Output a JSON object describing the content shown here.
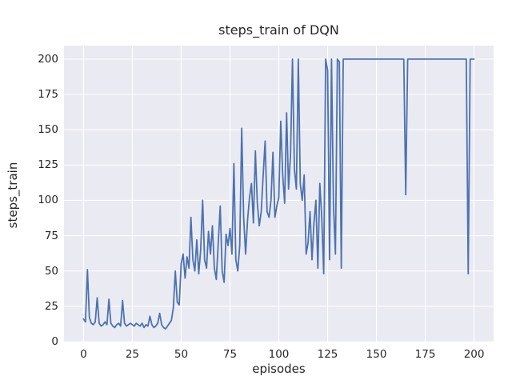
{
  "chart_data": {
    "type": "line",
    "title": "steps_train of DQN",
    "xlabel": "episodes",
    "ylabel": "steps_train",
    "xlim": [
      -10,
      210
    ],
    "ylim": [
      -0.55,
      209.55
    ],
    "xticks": [
      0,
      25,
      50,
      75,
      100,
      125,
      150,
      175,
      200
    ],
    "yticks": [
      0,
      25,
      50,
      75,
      100,
      125,
      150,
      175,
      200
    ],
    "grid": true,
    "legend_position": "none",
    "line_color": "#4c72b0",
    "plot_bg": "#eaeaf2",
    "grid_color": "#ffffff",
    "text_color": "#262626",
    "x_start": 0,
    "x_step": 1,
    "values": [
      16,
      14,
      51,
      17,
      13,
      12,
      14,
      31,
      13,
      11,
      12,
      14,
      12,
      30,
      13,
      11,
      10,
      12,
      13,
      11,
      29,
      13,
      11,
      12,
      13,
      12,
      11,
      13,
      12,
      11,
      13,
      10,
      12,
      11,
      18,
      12,
      10,
      11,
      13,
      20,
      12,
      10,
      9,
      11,
      13,
      15,
      24,
      50,
      28,
      26,
      55,
      62,
      45,
      60,
      52,
      88,
      58,
      50,
      72,
      48,
      65,
      100,
      58,
      52,
      78,
      62,
      82,
      52,
      44,
      70,
      96,
      50,
      42,
      76,
      68,
      80,
      62,
      126,
      58,
      50,
      68,
      151,
      88,
      62,
      86,
      102,
      112,
      84,
      135,
      98,
      82,
      92,
      118,
      142,
      92,
      88,
      100,
      134,
      88,
      96,
      102,
      156,
      118,
      98,
      162,
      108,
      132,
      200,
      122,
      108,
      200,
      112,
      100,
      118,
      62,
      70,
      92,
      58,
      84,
      100,
      52,
      112,
      88,
      48,
      200,
      192,
      58,
      200,
      96,
      62,
      200,
      198,
      52,
      200,
      200,
      200,
      200,
      200,
      200,
      200,
      200,
      200,
      200,
      200,
      200,
      200,
      200,
      200,
      200,
      200,
      200,
      200,
      200,
      200,
      200,
      200,
      200,
      200,
      200,
      200,
      200,
      200,
      200,
      200,
      200,
      104,
      200,
      200,
      200,
      200,
      200,
      200,
      200,
      200,
      200,
      200,
      200,
      200,
      200,
      200,
      200,
      200,
      200,
      200,
      200,
      200,
      200,
      200,
      200,
      200,
      200,
      200,
      200,
      200,
      200,
      200,
      200,
      48,
      200,
      200,
      200
    ]
  }
}
